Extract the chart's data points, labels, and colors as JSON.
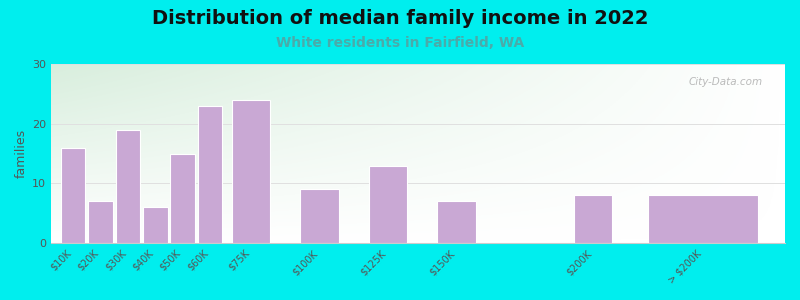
{
  "title": "Distribution of median family income in 2022",
  "subtitle": "White residents in Fairfield, WA",
  "title_fontsize": 14,
  "subtitle_fontsize": 10,
  "subtitle_color": "#4aabaa",
  "categories": [
    "$10K",
    "$20K",
    "$30K",
    "$40K",
    "$50K",
    "$60K",
    "$75K",
    "$100K",
    "$125K",
    "$150K",
    "$200K",
    "> $200K"
  ],
  "x_positions": [
    10,
    20,
    30,
    40,
    50,
    60,
    75,
    100,
    125,
    150,
    200,
    240
  ],
  "bar_widths": [
    9,
    9,
    9,
    9,
    9,
    9,
    14,
    14,
    14,
    14,
    14,
    40
  ],
  "values": [
    16,
    7,
    19,
    6,
    15,
    23,
    24,
    9,
    13,
    7,
    8,
    8
  ],
  "bar_color": "#c9a8d4",
  "bar_edgecolor": "#ffffff",
  "ylabel": "families",
  "ylabel_fontsize": 9,
  "ylabel_color": "#555555",
  "ylim": [
    0,
    30
  ],
  "yticks": [
    0,
    10,
    20,
    30
  ],
  "xlim": [
    2,
    270
  ],
  "background_color": "#00eeee",
  "plot_bg_left_color": "#e8f5e8",
  "plot_bg_right_color": "#f8f8f8",
  "grid_color": "#e0e0e0",
  "watermark": "City-Data.com",
  "tick_fontsize": 7,
  "tick_color": "#555555"
}
